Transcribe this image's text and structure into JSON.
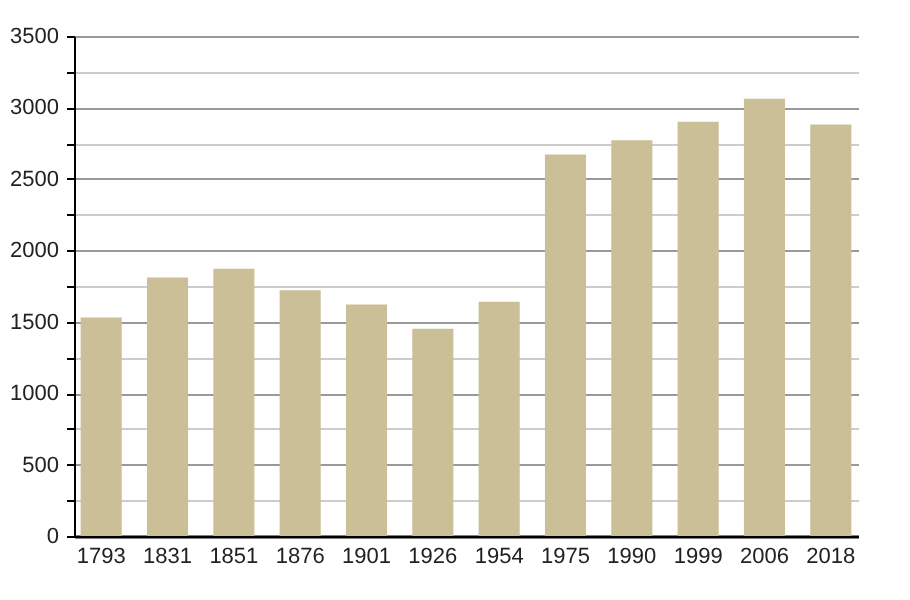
{
  "chart_data": {
    "type": "bar",
    "categories": [
      "1793",
      "1831",
      "1851",
      "1876",
      "1901",
      "1926",
      "1954",
      "1975",
      "1990",
      "1999",
      "2006",
      "2018"
    ],
    "values": [
      1530,
      1810,
      1870,
      1720,
      1620,
      1450,
      1640,
      2670,
      2770,
      2900,
      3060,
      2880
    ],
    "color": "#cbbf98",
    "ylim": [
      0,
      3500
    ],
    "yticks": [
      0,
      {
        "value": 250,
        "label": null
      },
      500,
      {
        "value": 750,
        "label": null
      },
      1000,
      {
        "value": 1250,
        "label": null
      },
      1500,
      {
        "value": 1750,
        "label": null
      },
      2000,
      {
        "value": 2250,
        "label": null
      },
      2500,
      {
        "value": 2750,
        "label": null
      },
      3000,
      {
        "value": 3250,
        "label": null
      },
      3500
    ],
    "grid": "y"
  }
}
